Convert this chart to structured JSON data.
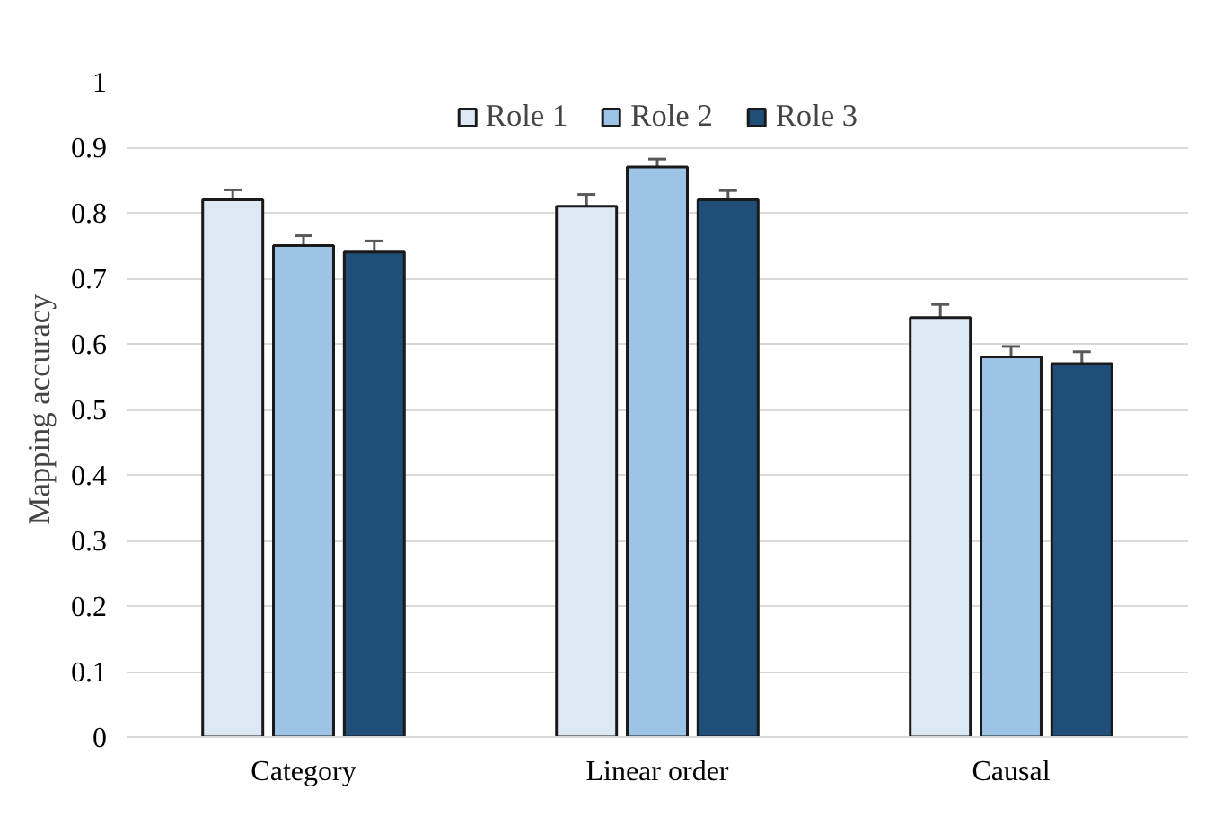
{
  "chart_data": {
    "type": "bar",
    "ylabel": "Mapping accuracy",
    "categories": [
      "Category",
      "Linear order",
      "Causal"
    ],
    "series": [
      {
        "name": "Role 1",
        "color": "#dde8f5",
        "values": [
          0.82,
          0.81,
          0.64
        ],
        "errors": [
          0.015,
          0.018,
          0.02
        ]
      },
      {
        "name": "Role 2",
        "color": "#9dc3e6",
        "values": [
          0.75,
          0.87,
          0.58
        ],
        "errors": [
          0.015,
          0.012,
          0.016
        ]
      },
      {
        "name": "Role 3",
        "color": "#1f4e79",
        "values": [
          0.74,
          0.82,
          0.57
        ],
        "errors": [
          0.017,
          0.014,
          0.018
        ]
      }
    ],
    "ylim": [
      0,
      1
    ],
    "yticks": [
      0,
      {
        "value": 0.1,
        "label": "0.1"
      },
      {
        "value": 0.2,
        "label": "0.2"
      },
      {
        "value": 0.3,
        "label": "0.3"
      },
      {
        "value": 0.4,
        "label": "0.4"
      },
      {
        "value": 0.5,
        "label": "0.5"
      },
      {
        "value": 0.6,
        "label": "0.6"
      },
      {
        "value": 0.7,
        "label": "0.7"
      },
      {
        "value": 0.8,
        "label": "0.8"
      },
      {
        "value": 0.9,
        "label": "0.9"
      },
      1
    ],
    "grid": "y",
    "legend": "top"
  }
}
